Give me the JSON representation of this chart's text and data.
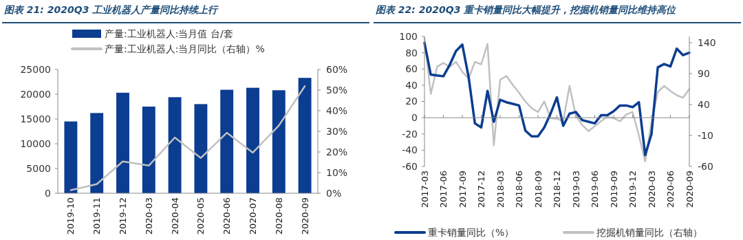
{
  "chart_data": [
    {
      "type": "bar",
      "title": "图表 21:  2020Q3 工业机器人产量同比持续上行",
      "categories": [
        "2019-10",
        "2019-11",
        "2019-12",
        "2020-03",
        "2020-04",
        "2020-05",
        "2020-06",
        "2020-07",
        "2020-08",
        "2020-09"
      ],
      "series": [
        {
          "name": "产量:工业机器人:当月值 台/套",
          "color": "#0b3d91",
          "values": [
            14500,
            16200,
            20300,
            17500,
            19400,
            18000,
            20900,
            21300,
            20800,
            23300
          ]
        },
        {
          "name": "产量:工业机器人:当月同比（右轴）%",
          "type": "line",
          "axis": "y2",
          "color": "#c0c0c0",
          "values": [
            1.5,
            4.4,
            15.4,
            13.4,
            27,
            17.1,
            29.3,
            19.7,
            32.8,
            51.9
          ]
        }
      ],
      "ylim": [
        0,
        25000
      ],
      "yticks": [
        0,
        5000,
        10000,
        15000,
        20000,
        25000
      ],
      "y2lim": [
        0,
        60
      ],
      "y2ticks": [
        {
          "value": 0,
          "label": "0%"
        },
        {
          "value": 10,
          "label": "10%"
        },
        {
          "value": 20,
          "label": "20%"
        },
        {
          "value": 30,
          "label": "30%"
        },
        {
          "value": 40,
          "label": "40%"
        },
        {
          "value": 50,
          "label": "50%"
        },
        {
          "value": 60,
          "label": "60%"
        }
      ],
      "legend": "top",
      "grid": false
    },
    {
      "type": "line",
      "title": "图表 22:  2020Q3 重卡销量同比大幅提升，挖掘机销量同比维持高位",
      "categories": [
        "2017-03",
        null,
        null,
        "2017-06",
        null,
        null,
        "2017-09",
        null,
        null,
        "2017-12",
        null,
        null,
        "2018-03",
        null,
        null,
        "2018-06",
        null,
        null,
        "2018-09",
        null,
        null,
        "2018-12",
        null,
        null,
        "2019-03",
        null,
        null,
        "2019-06",
        null,
        null,
        "2019-09",
        null,
        null,
        "2019-12",
        null,
        null,
        "2020-03",
        null,
        null,
        "2020-06",
        null,
        null,
        "2020-09"
      ],
      "series": [
        {
          "name": "重卡销量同比（%）",
          "color": "#0b3d91",
          "values": [
            92,
            53,
            52,
            51,
            65,
            82,
            90,
            50,
            -7,
            -12,
            33,
            -5,
            22,
            19,
            17,
            15,
            -16,
            -23,
            -23,
            -12,
            5,
            25,
            -10,
            5,
            7,
            -3,
            -5,
            -7,
            3,
            3,
            8,
            15,
            15,
            13,
            19,
            -46,
            -20,
            62,
            66,
            63,
            85,
            77,
            80
          ]
        },
        {
          "name": "挖掘机销量同比（右轴）",
          "axis": "y2",
          "color": "#c0c0c0",
          "values": [
            148,
            57,
            101,
            107,
            101,
            109,
            93,
            82,
            109,
            105,
            138,
            -26,
            80,
            86,
            72,
            59,
            45,
            34,
            28,
            45,
            18,
            17,
            13,
            70,
            22,
            7,
            -3,
            5,
            13,
            20,
            18,
            13,
            24,
            28,
            -10,
            -52,
            12,
            60,
            70,
            62,
            55,
            51,
            65
          ]
        }
      ],
      "ylim": [
        -60,
        100
      ],
      "yticks": [
        -60,
        -40,
        -20,
        0,
        20,
        40,
        60,
        80,
        100
      ],
      "y2lim": [
        -60,
        150
      ],
      "y2ticks": [
        -60,
        -10,
        40,
        90,
        140
      ],
      "ref_lines": [
        {
          "axis": "y",
          "value": 0,
          "color": "#888888"
        }
      ],
      "legend": "bottom",
      "grid": false
    }
  ]
}
